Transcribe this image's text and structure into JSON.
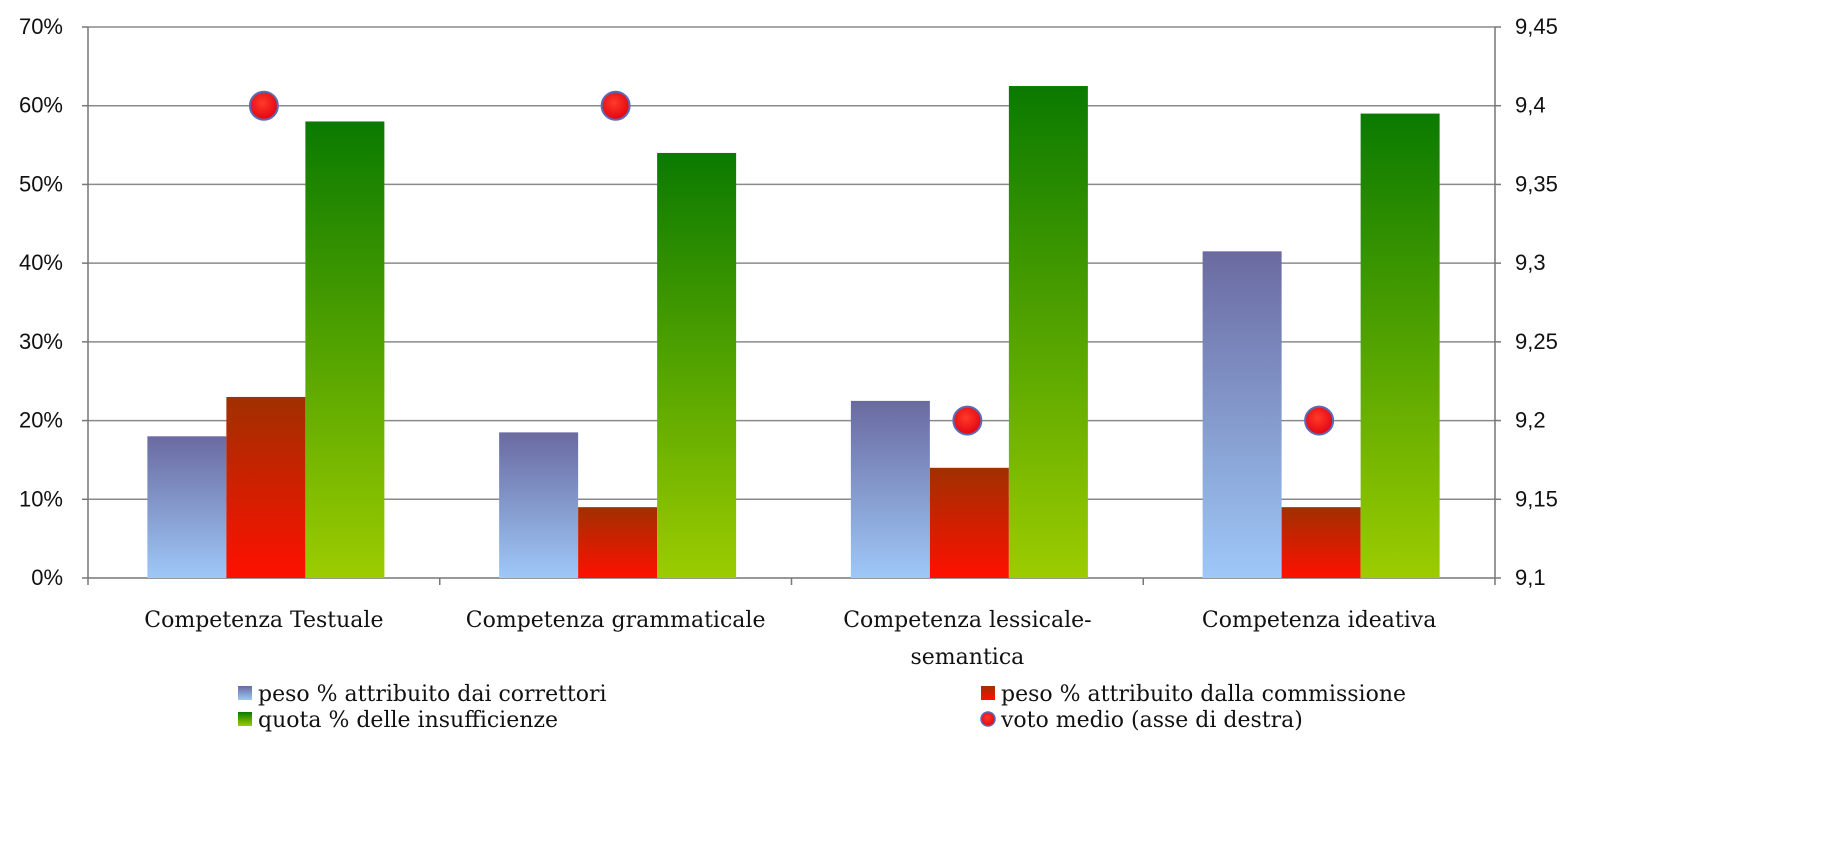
{
  "chart_data": {
    "type": "bar",
    "categories": [
      "Competenza Testuale",
      "Competenza grammaticale",
      "Competenza lessicale-semantica",
      "Competenza ideativa"
    ],
    "category_lines": [
      [
        "Competenza Testuale"
      ],
      [
        "Competenza grammaticale"
      ],
      [
        "Competenza lessicale-",
        "semantica"
      ],
      [
        "Competenza ideativa"
      ]
    ],
    "series": [
      {
        "name": "peso % attribuito dai correttori",
        "values": [
          18,
          18.5,
          22.5,
          41.5
        ],
        "axis": "left",
        "kind": "bar",
        "color_top": "#6a6aa0",
        "color_bottom": "#9ec8f8"
      },
      {
        "name": "peso % attribuito dalla commissione",
        "values": [
          23,
          9,
          14,
          9
        ],
        "axis": "left",
        "kind": "bar",
        "color_top": "#a03000",
        "color_bottom": "#ff1000"
      },
      {
        "name": "quota % delle insufficienze",
        "values": [
          58,
          54,
          62.5,
          59
        ],
        "axis": "left",
        "kind": "bar",
        "color_top": "#0a7a00",
        "color_bottom": "#9ccc00"
      },
      {
        "name": "voto medio (asse di destra)",
        "values": [
          9.4,
          9.4,
          9.2,
          9.2
        ],
        "axis": "right",
        "kind": "scatter",
        "color": "#ff0000"
      }
    ],
    "y_left": {
      "min": 0,
      "max": 70,
      "ticks": [
        0,
        10,
        20,
        30,
        40,
        50,
        60,
        70
      ],
      "tick_labels": [
        "0%",
        "10%",
        "20%",
        "30%",
        "40%",
        "50%",
        "60%",
        "70%"
      ]
    },
    "y_right": {
      "min": 9.1,
      "max": 9.45,
      "ticks": [
        9.1,
        9.15,
        9.2,
        9.25,
        9.3,
        9.35,
        9.4,
        9.45
      ],
      "tick_labels": [
        "9,1",
        "9,15",
        "9,2",
        "9,25",
        "9,3",
        "9,35",
        "9,4",
        "9,45"
      ]
    },
    "grid": true,
    "legend_position": "bottom"
  }
}
